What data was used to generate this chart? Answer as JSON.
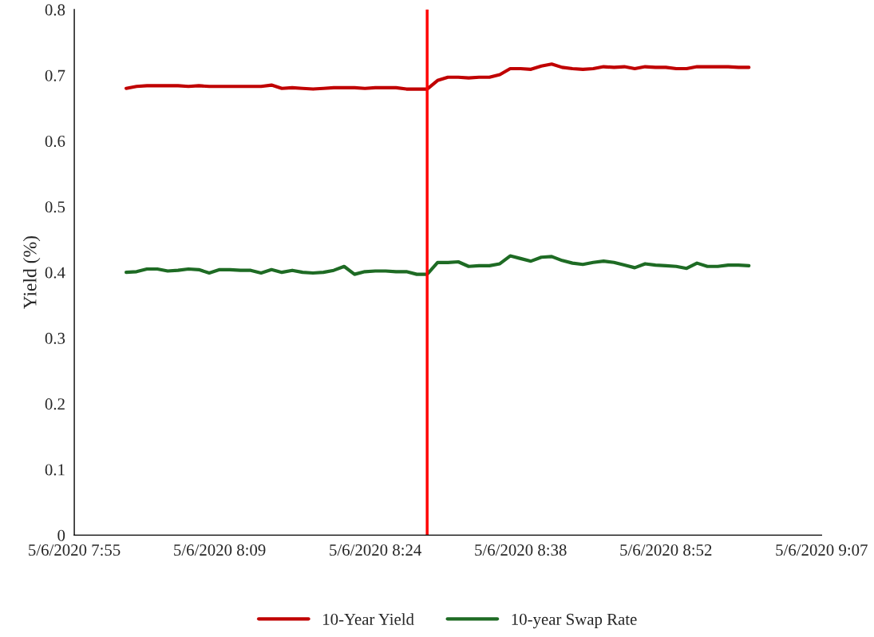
{
  "chart_data": {
    "type": "line",
    "ylabel": "Yield (%)",
    "x": [
      "2020-05-06T08:00",
      "2020-05-06T08:01",
      "2020-05-06T08:02",
      "2020-05-06T08:03",
      "2020-05-06T08:04",
      "2020-05-06T08:05",
      "2020-05-06T08:06",
      "2020-05-06T08:07",
      "2020-05-06T08:08",
      "2020-05-06T08:09",
      "2020-05-06T08:10",
      "2020-05-06T08:11",
      "2020-05-06T08:12",
      "2020-05-06T08:13",
      "2020-05-06T08:14",
      "2020-05-06T08:15",
      "2020-05-06T08:16",
      "2020-05-06T08:17",
      "2020-05-06T08:18",
      "2020-05-06T08:19",
      "2020-05-06T08:20",
      "2020-05-06T08:21",
      "2020-05-06T08:22",
      "2020-05-06T08:23",
      "2020-05-06T08:24",
      "2020-05-06T08:25",
      "2020-05-06T08:26",
      "2020-05-06T08:27",
      "2020-05-06T08:28",
      "2020-05-06T08:29",
      "2020-05-06T08:30",
      "2020-05-06T08:31",
      "2020-05-06T08:32",
      "2020-05-06T08:33",
      "2020-05-06T08:34",
      "2020-05-06T08:35",
      "2020-05-06T08:36",
      "2020-05-06T08:37",
      "2020-05-06T08:38",
      "2020-05-06T08:39",
      "2020-05-06T08:40",
      "2020-05-06T08:41",
      "2020-05-06T08:42",
      "2020-05-06T08:43",
      "2020-05-06T08:44",
      "2020-05-06T08:45",
      "2020-05-06T08:46",
      "2020-05-06T08:47",
      "2020-05-06T08:48",
      "2020-05-06T08:49",
      "2020-05-06T08:50",
      "2020-05-06T08:51",
      "2020-05-06T08:52",
      "2020-05-06T08:53",
      "2020-05-06T08:54",
      "2020-05-06T08:55",
      "2020-05-06T08:56",
      "2020-05-06T08:57",
      "2020-05-06T08:58",
      "2020-05-06T08:59",
      "2020-05-06T09:00"
    ],
    "series": [
      {
        "name": "10-Year Yield",
        "color": "#c00000",
        "values": [
          0.68,
          0.683,
          0.684,
          0.684,
          0.684,
          0.684,
          0.683,
          0.684,
          0.683,
          0.683,
          0.683,
          0.683,
          0.683,
          0.683,
          0.685,
          0.68,
          0.681,
          0.68,
          0.679,
          0.68,
          0.681,
          0.681,
          0.681,
          0.68,
          0.681,
          0.681,
          0.681,
          0.679,
          0.679,
          0.679,
          0.692,
          0.697,
          0.697,
          0.696,
          0.697,
          0.697,
          0.701,
          0.71,
          0.71,
          0.709,
          0.714,
          0.717,
          0.712,
          0.71,
          0.709,
          0.71,
          0.713,
          0.712,
          0.713,
          0.71,
          0.713,
          0.712,
          0.712,
          0.71,
          0.71,
          0.713,
          0.713,
          0.713,
          0.713,
          0.712,
          0.712
        ]
      },
      {
        "name": "10-year Swap Rate",
        "color": "#1e6b24",
        "values": [
          0.4,
          0.401,
          0.405,
          0.405,
          0.402,
          0.403,
          0.405,
          0.404,
          0.399,
          0.404,
          0.404,
          0.403,
          0.403,
          0.399,
          0.404,
          0.4,
          0.403,
          0.4,
          0.399,
          0.4,
          0.403,
          0.409,
          0.397,
          0.401,
          0.402,
          0.402,
          0.401,
          0.401,
          0.397,
          0.397,
          0.415,
          0.415,
          0.416,
          0.409,
          0.41,
          0.41,
          0.413,
          0.425,
          0.421,
          0.417,
          0.423,
          0.424,
          0.418,
          0.414,
          0.412,
          0.415,
          0.417,
          0.415,
          0.411,
          0.407,
          0.413,
          0.411,
          0.41,
          0.409,
          0.406,
          0.414,
          0.409,
          0.409,
          0.411,
          0.411,
          0.41
        ]
      }
    ],
    "xlim": [
      "2020-05-06T07:55",
      "2020-05-06T09:07"
    ],
    "xticks": [
      {
        "value": "2020-05-06T07:55",
        "label": "5/6/2020 7:55"
      },
      {
        "value": "2020-05-06T08:09",
        "label": "5/6/2020 8:09"
      },
      {
        "value": "2020-05-06T08:24",
        "label": "5/6/2020 8:24"
      },
      {
        "value": "2020-05-06T08:38",
        "label": "5/6/2020 8:38"
      },
      {
        "value": "2020-05-06T08:52",
        "label": "5/6/2020 8:52"
      },
      {
        "value": "2020-05-06T09:07",
        "label": "5/6/2020 9:07"
      }
    ],
    "ylim": [
      0,
      0.8
    ],
    "yticks": [
      0,
      0.1,
      0.2,
      0.3,
      0.4,
      0.5,
      0.6,
      0.7,
      0.8
    ],
    "ref_lines": [
      {
        "axis": "x",
        "value": "2020-05-06T08:29",
        "color": "#ff0000",
        "line_style": "solid"
      }
    ],
    "grid": false,
    "legend": "bottom",
    "marker": "none",
    "line_style": "solid"
  }
}
